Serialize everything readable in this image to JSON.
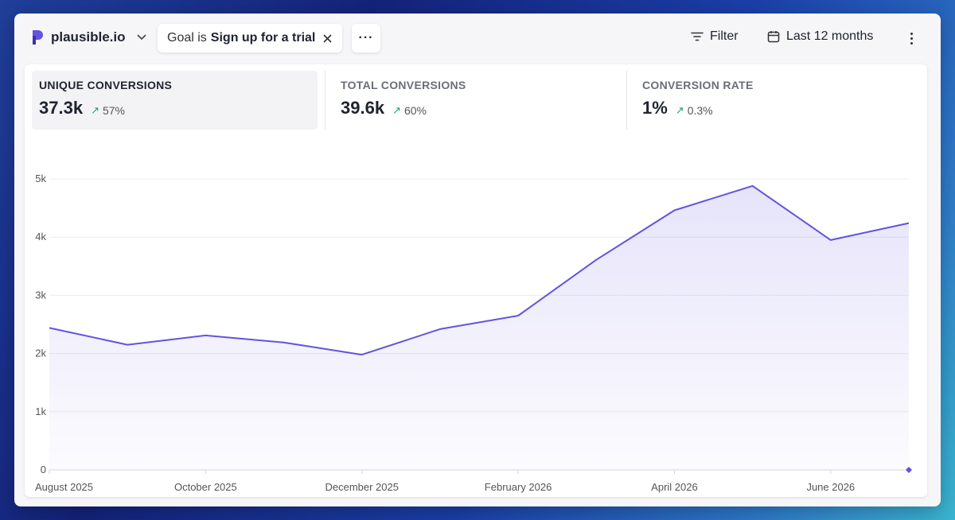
{
  "site": {
    "name": "plausible.io",
    "logo_icon": "plausible-logo-icon",
    "color": "#6254dd"
  },
  "filter_pill": {
    "prefix": "Goal is",
    "value": "Sign up for a trial"
  },
  "more_label": "···",
  "toolbar": {
    "filter_label": "Filter",
    "date_label": "Last 12 months"
  },
  "metrics": [
    {
      "label": "UNIQUE CONVERSIONS",
      "value": "37.3k",
      "change": "57%"
    },
    {
      "label": "TOTAL CONVERSIONS",
      "value": "39.6k",
      "change": "60%"
    },
    {
      "label": "CONVERSION RATE",
      "value": "1%",
      "change": "0.3%"
    }
  ],
  "colors": {
    "accent": "#6254dd",
    "positive": "#1aa36b"
  },
  "chart_data": {
    "type": "area",
    "x": [
      "August 2025",
      "September 2025",
      "October 2025",
      "November 2025",
      "December 2025",
      "January 2026",
      "February 2026",
      "March 2026",
      "April 2026",
      "May 2026",
      "June 2026",
      "July 2026"
    ],
    "x_tick_labels": [
      "August 2025",
      "October 2025",
      "December 2025",
      "February 2026",
      "April 2026",
      "June 2026"
    ],
    "series": [
      {
        "values": [
          2440,
          2150,
          2310,
          2190,
          1980,
          2420,
          2650,
          3610,
          4460,
          4880,
          3950,
          4240
        ]
      }
    ],
    "y_ticks": [
      "0",
      "1k",
      "2k",
      "3k",
      "4k",
      "5k"
    ],
    "ylim": [
      0,
      5000
    ],
    "grid": true
  }
}
